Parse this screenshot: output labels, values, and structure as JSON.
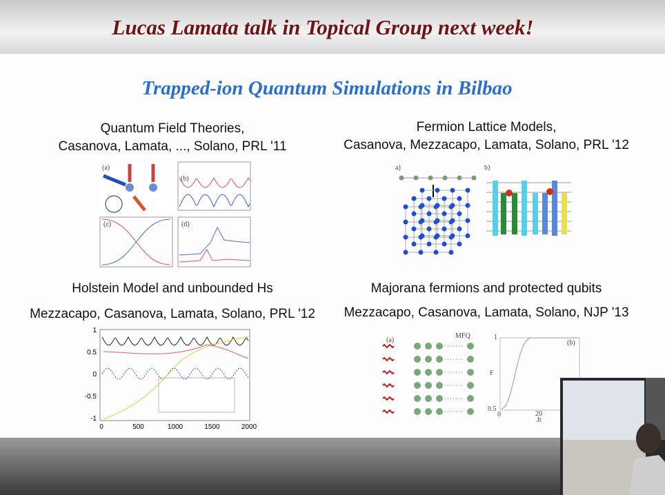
{
  "header": {
    "title": "Lucas Lamata talk in Topical Group next week!"
  },
  "slide": {
    "title": "Trapped-ion Quantum Simulations in Bilbao",
    "panels": [
      {
        "heading": "Quantum Field Theories,",
        "authors": "Casanova, Lamata, ..., Solano, PRL '11",
        "labels": [
          "(a)",
          "(b)",
          "(c)",
          "(d)"
        ]
      },
      {
        "heading": "Fermion Lattice Models,",
        "authors": "Casanova, Mezzacapo, Lamata, Solano, PRL '12",
        "labels": [
          "a)",
          "b)"
        ]
      },
      {
        "heading": "Holstein Model and unbounded Hs",
        "authors": "Mezzacapo, Casanova, Lamata, Solano, PRL '12",
        "yticks": [
          "1",
          "0.5",
          "0",
          "-0.5",
          "-1"
        ],
        "xticks": [
          "0",
          "500",
          "1000",
          "1500",
          "2000"
        ]
      },
      {
        "heading": "Majorana fermions and protected qubits",
        "authors": "Mezzacapo, Casanova, Lamata, Solano, NJP '13",
        "labels": [
          "(a)",
          "MFQ",
          "(b)",
          "F",
          "Jt"
        ],
        "yticks": [
          "1",
          "0.5"
        ],
        "xticks": [
          "0",
          "20"
        ]
      }
    ]
  }
}
